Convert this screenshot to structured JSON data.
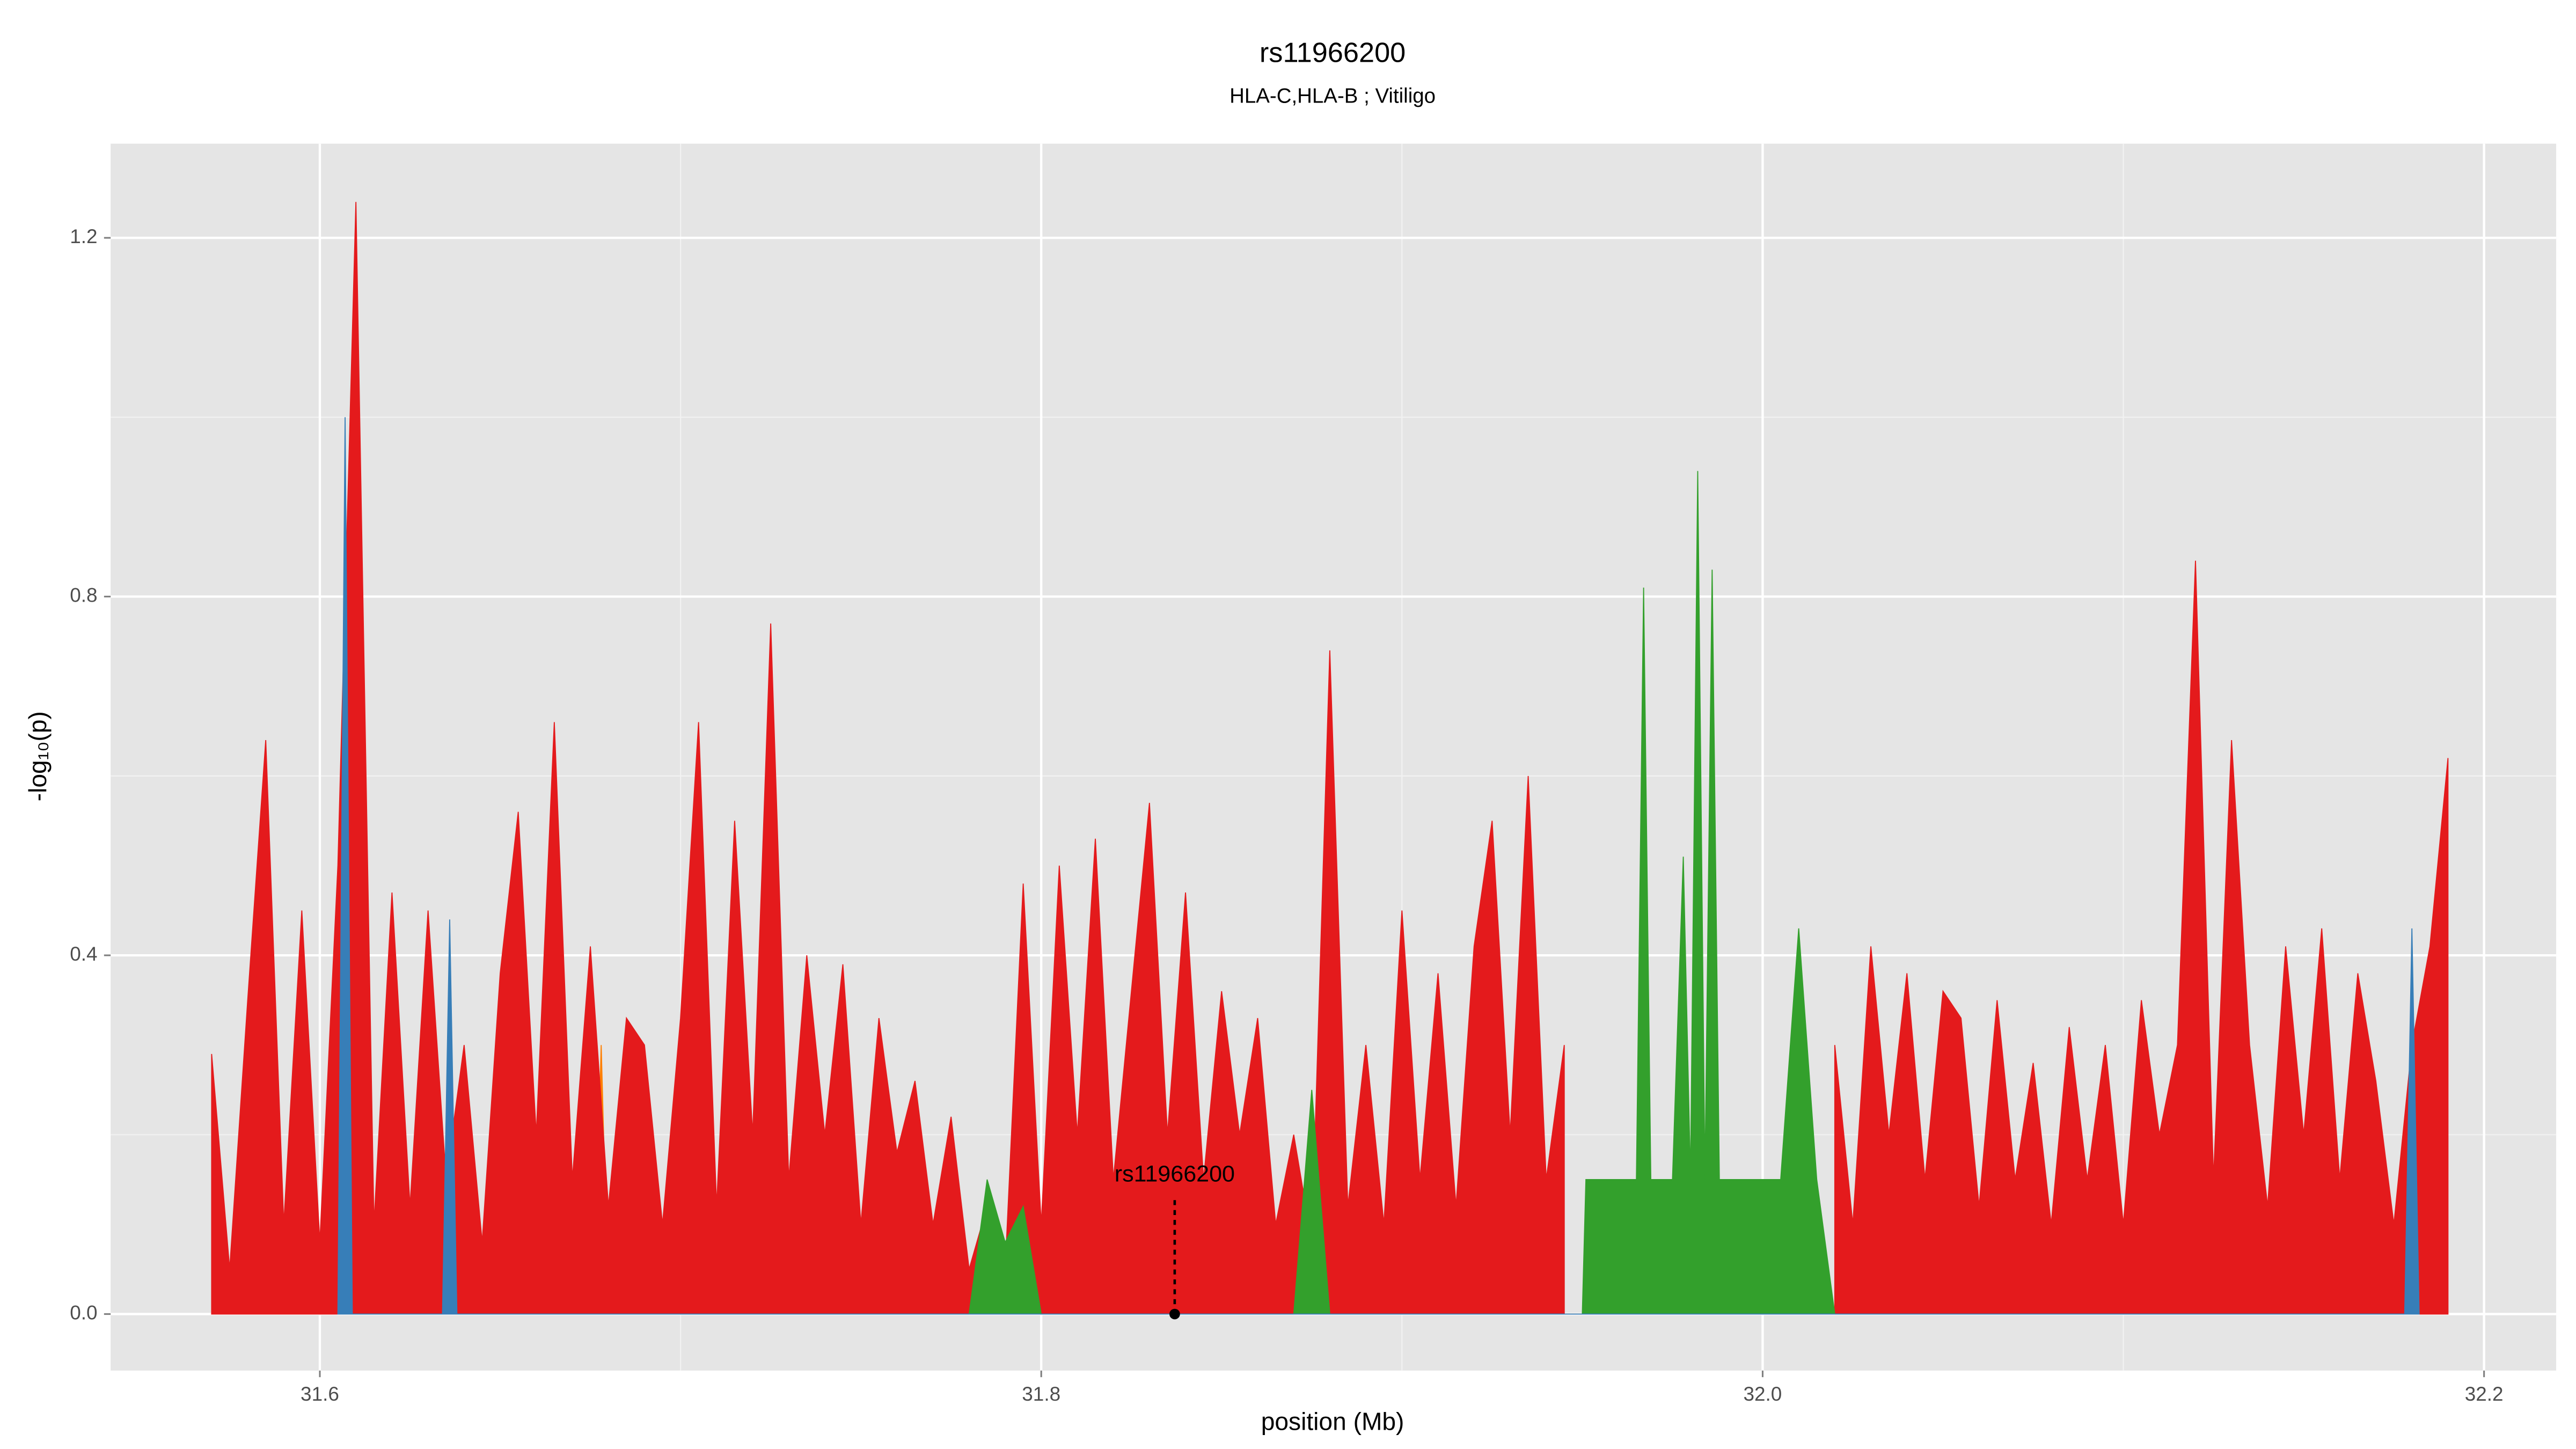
{
  "chart_data": {
    "type": "area",
    "title": "rs11966200",
    "subtitle": "HLA-C,HLA-B ; Vitiligo",
    "xlabel": "position (Mb)",
    "ylabel": "-log₁₀(p)",
    "xlim": [
      31.542,
      32.22
    ],
    "ylim": [
      -0.063,
      1.305
    ],
    "xticks": [
      31.6,
      31.8,
      {
        "value": 32,
        "label": "32.0"
      },
      32.2
    ],
    "yticks": [
      {
        "value": 0,
        "label": "0.0"
      },
      0.4,
      0.8,
      1.2
    ],
    "x_minor_grid": [
      31.7,
      31.9,
      32.1
    ],
    "y_minor_grid": [
      0.2,
      0.6,
      1.0
    ],
    "grid": true,
    "series": [
      {
        "color": "#ff7f00",
        "x": [
          31.583,
          31.585,
          31.587,
          31.676,
          31.678,
          31.68,
          32.092,
          32.094,
          32.096
        ],
        "values": [
          0,
          0.35,
          0,
          0,
          0.3,
          0,
          0,
          0.25,
          0
        ]
      },
      {
        "color": "#e41a1c",
        "x": [
          31.57,
          31.575,
          31.58,
          31.585,
          31.59,
          31.595,
          31.6,
          31.605,
          31.61,
          31.615,
          31.62,
          31.625,
          31.63,
          31.635,
          31.64,
          31.645,
          31.65,
          31.655,
          31.66,
          31.665,
          31.67,
          31.675,
          31.68,
          31.685,
          31.69,
          31.695,
          31.7,
          31.705,
          31.71,
          31.715,
          31.72,
          31.725,
          31.73,
          31.735,
          31.74,
          31.745,
          31.75,
          31.755,
          31.76,
          31.765,
          31.77,
          31.775,
          31.78,
          31.785,
          31.79,
          31.795,
          31.8,
          31.805,
          31.81,
          31.815,
          31.82,
          31.825,
          31.83,
          31.835,
          31.84,
          31.845,
          31.85,
          31.855,
          31.86,
          31.865,
          31.87,
          31.875,
          31.88,
          31.885,
          31.89,
          31.895,
          31.9,
          31.905,
          31.91,
          31.915,
          31.92,
          31.925,
          31.93,
          31.935,
          31.94,
          31.945,
          31.95,
          31.955,
          31.96,
          31.965,
          31.97,
          31.975,
          31.98,
          31.985,
          31.99,
          31.995,
          32,
          32.005,
          32.01,
          32.015,
          32.02,
          32.025,
          32.03,
          32.035,
          32.04,
          32.045,
          32.05,
          32.055,
          32.06,
          32.065,
          32.07,
          32.075,
          32.08,
          32.085,
          32.09,
          32.095,
          32.1,
          32.105,
          32.11,
          32.115,
          32.12,
          32.125,
          32.13,
          32.135,
          32.14,
          32.145,
          32.15,
          32.155,
          32.16,
          32.165,
          32.17,
          32.175,
          32.18,
          32.185,
          32.19
        ],
        "values": [
          0.29,
          0.05,
          0.35,
          0.64,
          0.1,
          0.45,
          0.08,
          0.5,
          1.24,
          0.1,
          0.47,
          0.12,
          0.45,
          0.15,
          0.3,
          0.08,
          0.38,
          0.56,
          0.2,
          0.66,
          0.15,
          0.41,
          0.12,
          0.33,
          0.3,
          0.1,
          0.33,
          0.66,
          0.12,
          0.55,
          0.2,
          0.77,
          0.15,
          0.4,
          0.2,
          0.39,
          0.1,
          0.33,
          0.18,
          0.26,
          0.1,
          0.22,
          0.05,
          0.12,
          0.05,
          0.48,
          0.1,
          0.5,
          0.2,
          0.53,
          0.15,
          0.36,
          0.57,
          0.2,
          0.47,
          0.15,
          0.36,
          0.2,
          0.33,
          0.1,
          0.2,
          0.08,
          0.74,
          0.12,
          0.3,
          0.1,
          0.45,
          0.15,
          0.38,
          0.12,
          0.41,
          0.55,
          0.2,
          0.6,
          0.15,
          0.3,
          null,
          null,
          null,
          null,
          null,
          null,
          null,
          null,
          null,
          null,
          null,
          null,
          null,
          null,
          0.3,
          0.1,
          0.41,
          0.2,
          0.38,
          0.15,
          0.36,
          0.33,
          0.12,
          0.35,
          0.15,
          0.28,
          0.1,
          0.32,
          0.15,
          0.3,
          0.1,
          0.35,
          0.2,
          0.3,
          0.84,
          0.15,
          0.64,
          0.3,
          0.12,
          0.41,
          0.2,
          0.43,
          0.15,
          0.38,
          0.26,
          0.1,
          0.3,
          0.41,
          0.62
        ]
      },
      {
        "color": "#33a02c",
        "x": [
          31.78,
          31.785,
          31.79,
          31.795,
          31.8,
          31.84,
          31.87,
          31.875,
          31.88,
          31.92,
          31.95,
          31.951,
          31.965,
          31.967,
          31.969,
          31.975,
          31.978,
          31.98,
          31.982,
          31.984,
          31.986,
          31.988,
          32.005,
          32.01,
          32.015,
          32.02
        ],
        "values": [
          0,
          0.15,
          0.08,
          0.12,
          0,
          null,
          0,
          0.25,
          0,
          null,
          0,
          0.15,
          0.15,
          0.81,
          0.15,
          0.15,
          0.51,
          0.15,
          0.94,
          0.15,
          0.83,
          0.15,
          0.15,
          0.43,
          0.15,
          0
        ]
      },
      {
        "color": "#377eb8",
        "x": [
          31.605,
          31.607,
          31.609,
          31.634,
          31.636,
          31.638,
          32.178,
          32.18,
          32.182
        ],
        "values": [
          0,
          1.0,
          0,
          0,
          0.44,
          0,
          0,
          0.43,
          0
        ]
      }
    ],
    "annotation": {
      "text": "rs11966200",
      "x": 31.837,
      "y": 0
    }
  }
}
